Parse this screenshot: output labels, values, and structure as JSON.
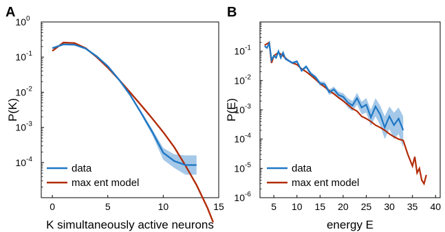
{
  "chart_data": [
    {
      "panel_label": "A",
      "type": "line",
      "xlabel": "K simultaneously active neurons",
      "ylabel": "P(K)",
      "xlim": [
        -1,
        15
      ],
      "ylim_log10": [
        -5,
        0
      ],
      "yscale": "log",
      "xticks": [
        0,
        5,
        10,
        15
      ],
      "yticks_exponent": [
        0,
        -1,
        -2,
        -3,
        -4
      ],
      "tick_base": "10",
      "legend_position": "bottom-left",
      "colors": {
        "data": "#1f77c4",
        "band": "#5b9bd5",
        "model": "#b22b07"
      },
      "series": [
        {
          "name": "data",
          "x": [
            0,
            1,
            2,
            3,
            4,
            5,
            6,
            7,
            8,
            9,
            10,
            11,
            12,
            13
          ],
          "y": [
            0.18,
            0.23,
            0.225,
            0.175,
            0.105,
            0.055,
            0.023,
            0.0085,
            0.0026,
            0.00075,
            0.00019,
            0.00011,
            8.5e-05,
            8.5e-05
          ],
          "y_lower": [
            0.17,
            0.22,
            0.215,
            0.168,
            0.1,
            0.052,
            0.0215,
            0.0079,
            0.0023,
            0.00062,
            0.00012,
            7e-05,
            4.5e-05,
            4.5e-05
          ],
          "y_upper": [
            0.19,
            0.24,
            0.235,
            0.182,
            0.11,
            0.058,
            0.0245,
            0.0092,
            0.0029,
            0.0009,
            0.00026,
            0.00017,
            0.00016,
            0.00016
          ]
        },
        {
          "name": "max ent model",
          "x": [
            0,
            1,
            2,
            3,
            4,
            5,
            6,
            7,
            8,
            9,
            10,
            11,
            12,
            13,
            14,
            14.5
          ],
          "y": [
            0.15,
            0.26,
            0.25,
            0.18,
            0.1,
            0.05,
            0.023,
            0.01,
            0.0043,
            0.0018,
            0.00073,
            0.00027,
            8.2e-05,
            2.3e-05,
            5e-06,
            2e-06
          ]
        }
      ]
    },
    {
      "panel_label": "B",
      "type": "line",
      "xlabel": "energy E",
      "ylabel": "P(E)",
      "xlim": [
        2,
        41
      ],
      "ylim_log10": [
        -6,
        0
      ],
      "yscale": "log",
      "xticks": [
        5,
        10,
        15,
        20,
        25,
        30,
        35,
        40
      ],
      "yticks_exponent": [
        -1,
        -2,
        -3,
        -4,
        -5,
        -6
      ],
      "tick_base": "10",
      "legend_position": "bottom-left",
      "colors": {
        "data": "#1f77c4",
        "band": "#5b9bd5",
        "model": "#b22b07"
      },
      "series": [
        {
          "name": "data",
          "x": [
            3,
            3.5,
            4,
            4.5,
            5,
            5.5,
            6,
            6.5,
            7,
            7.5,
            8,
            9,
            10,
            11,
            12,
            13,
            14,
            15,
            16,
            17,
            18,
            19,
            20,
            21,
            22,
            23,
            24,
            25,
            26,
            27,
            28,
            29,
            30,
            31,
            32,
            33
          ],
          "y": [
            0.15,
            0.13,
            0.19,
            0.05,
            0.07,
            0.06,
            0.1,
            0.06,
            0.09,
            0.055,
            0.05,
            0.04,
            0.045,
            0.022,
            0.03,
            0.017,
            0.013,
            0.008,
            0.0075,
            0.004,
            0.005,
            0.0032,
            0.0028,
            0.0018,
            0.0014,
            0.0025,
            0.0012,
            0.0015,
            0.00055,
            0.0013,
            0.0007,
            0.00025,
            0.0006,
            0.0003,
            0.0005,
            0.0002
          ],
          "y_lower": [
            0.14,
            0.12,
            0.17,
            0.045,
            0.063,
            0.054,
            0.09,
            0.054,
            0.08,
            0.05,
            0.045,
            0.036,
            0.04,
            0.019,
            0.026,
            0.014,
            0.011,
            0.0066,
            0.0061,
            0.0032,
            0.0039,
            0.0024,
            0.002,
            0.0012,
            0.0009,
            0.0015,
            0.0007,
            0.0008,
            0.00028,
            0.0006,
            0.0003,
            0.0001,
            0.00022,
            0.0001,
            0.00015,
            5e-05
          ],
          "y_upper": [
            0.16,
            0.14,
            0.21,
            0.055,
            0.077,
            0.066,
            0.11,
            0.066,
            0.1,
            0.06,
            0.055,
            0.044,
            0.05,
            0.025,
            0.034,
            0.02,
            0.015,
            0.0095,
            0.009,
            0.005,
            0.0062,
            0.0041,
            0.0037,
            0.0025,
            0.002,
            0.0038,
            0.0019,
            0.0025,
            0.001,
            0.0025,
            0.0014,
            0.0006,
            0.0013,
            0.0008,
            0.0012,
            0.0006
          ]
        },
        {
          "name": "max ent model",
          "x": [
            3,
            4,
            4.5,
            5,
            6,
            7,
            8,
            9,
            10,
            11,
            12,
            13,
            14,
            15,
            16,
            17,
            18,
            19,
            20,
            21,
            22,
            23,
            24,
            25,
            26,
            27,
            28,
            29,
            30,
            31,
            32,
            33,
            34,
            35,
            35.5,
            36,
            36.5,
            37,
            37.5,
            38
          ],
          "y": [
            0.16,
            0.2,
            0.04,
            0.07,
            0.09,
            0.07,
            0.05,
            0.04,
            0.035,
            0.025,
            0.02,
            0.015,
            0.011,
            0.008,
            0.006,
            0.0045,
            0.0035,
            0.0026,
            0.002,
            0.0015,
            0.0011,
            0.0009,
            0.0006,
            0.0005,
            0.0004,
            0.0003,
            0.00025,
            0.0002,
            0.00015,
            0.00012,
            0.0001,
            9e-05,
            3e-05,
            1.2e-05,
            2.5e-05,
            7e-06,
            1e-05,
            4e-06,
            3e-06,
            6e-06
          ]
        }
      ]
    }
  ]
}
